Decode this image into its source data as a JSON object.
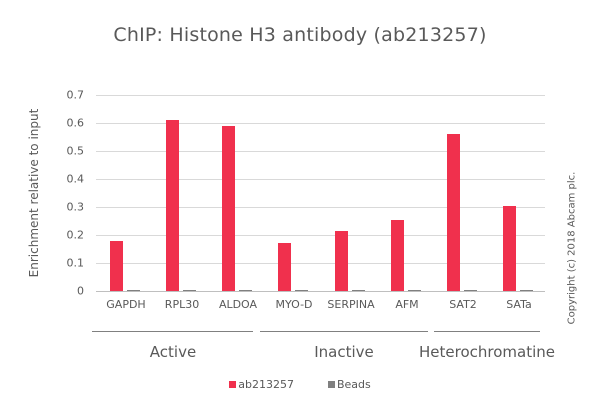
{
  "chart_data": {
    "type": "bar",
    "title": "ChIP: Histone H3 antibody (ab213257)",
    "xlabel": "",
    "ylabel": "Enrichment  relative to input",
    "ylim": [
      0,
      0.7
    ],
    "yticks": [
      "0",
      "0.1",
      "0.2",
      "0.3",
      "0.4",
      "0.5",
      "0.6",
      "0.7"
    ],
    "grid": true,
    "legend_position": "bottom",
    "categories": [
      "GAPDH",
      "RPL30",
      "ALDOA",
      "MYO-D",
      "SERPINA",
      "AFM",
      "SAT2",
      "SATa"
    ],
    "groups": [
      {
        "label": "Active",
        "categories": [
          "GAPDH",
          "RPL30",
          "ALDOA"
        ]
      },
      {
        "label": "Inactive",
        "categories": [
          "MYO-D",
          "SERPINA",
          "AFM"
        ]
      },
      {
        "label": "Heterochromatine",
        "categories": [
          "SAT2",
          "SATa"
        ]
      }
    ],
    "series": [
      {
        "name": "ab213257",
        "color": "#f0304d",
        "values": [
          0.18,
          0.61,
          0.59,
          0.17,
          0.215,
          0.255,
          0.56,
          0.305
        ]
      },
      {
        "name": "Beads",
        "color": "#808080",
        "values": [
          0.005,
          0.005,
          0.005,
          0.005,
          0.005,
          0.005,
          0.005,
          0.005
        ]
      }
    ]
  },
  "copyright": "Copyright (c) 2018 Abcam plc."
}
